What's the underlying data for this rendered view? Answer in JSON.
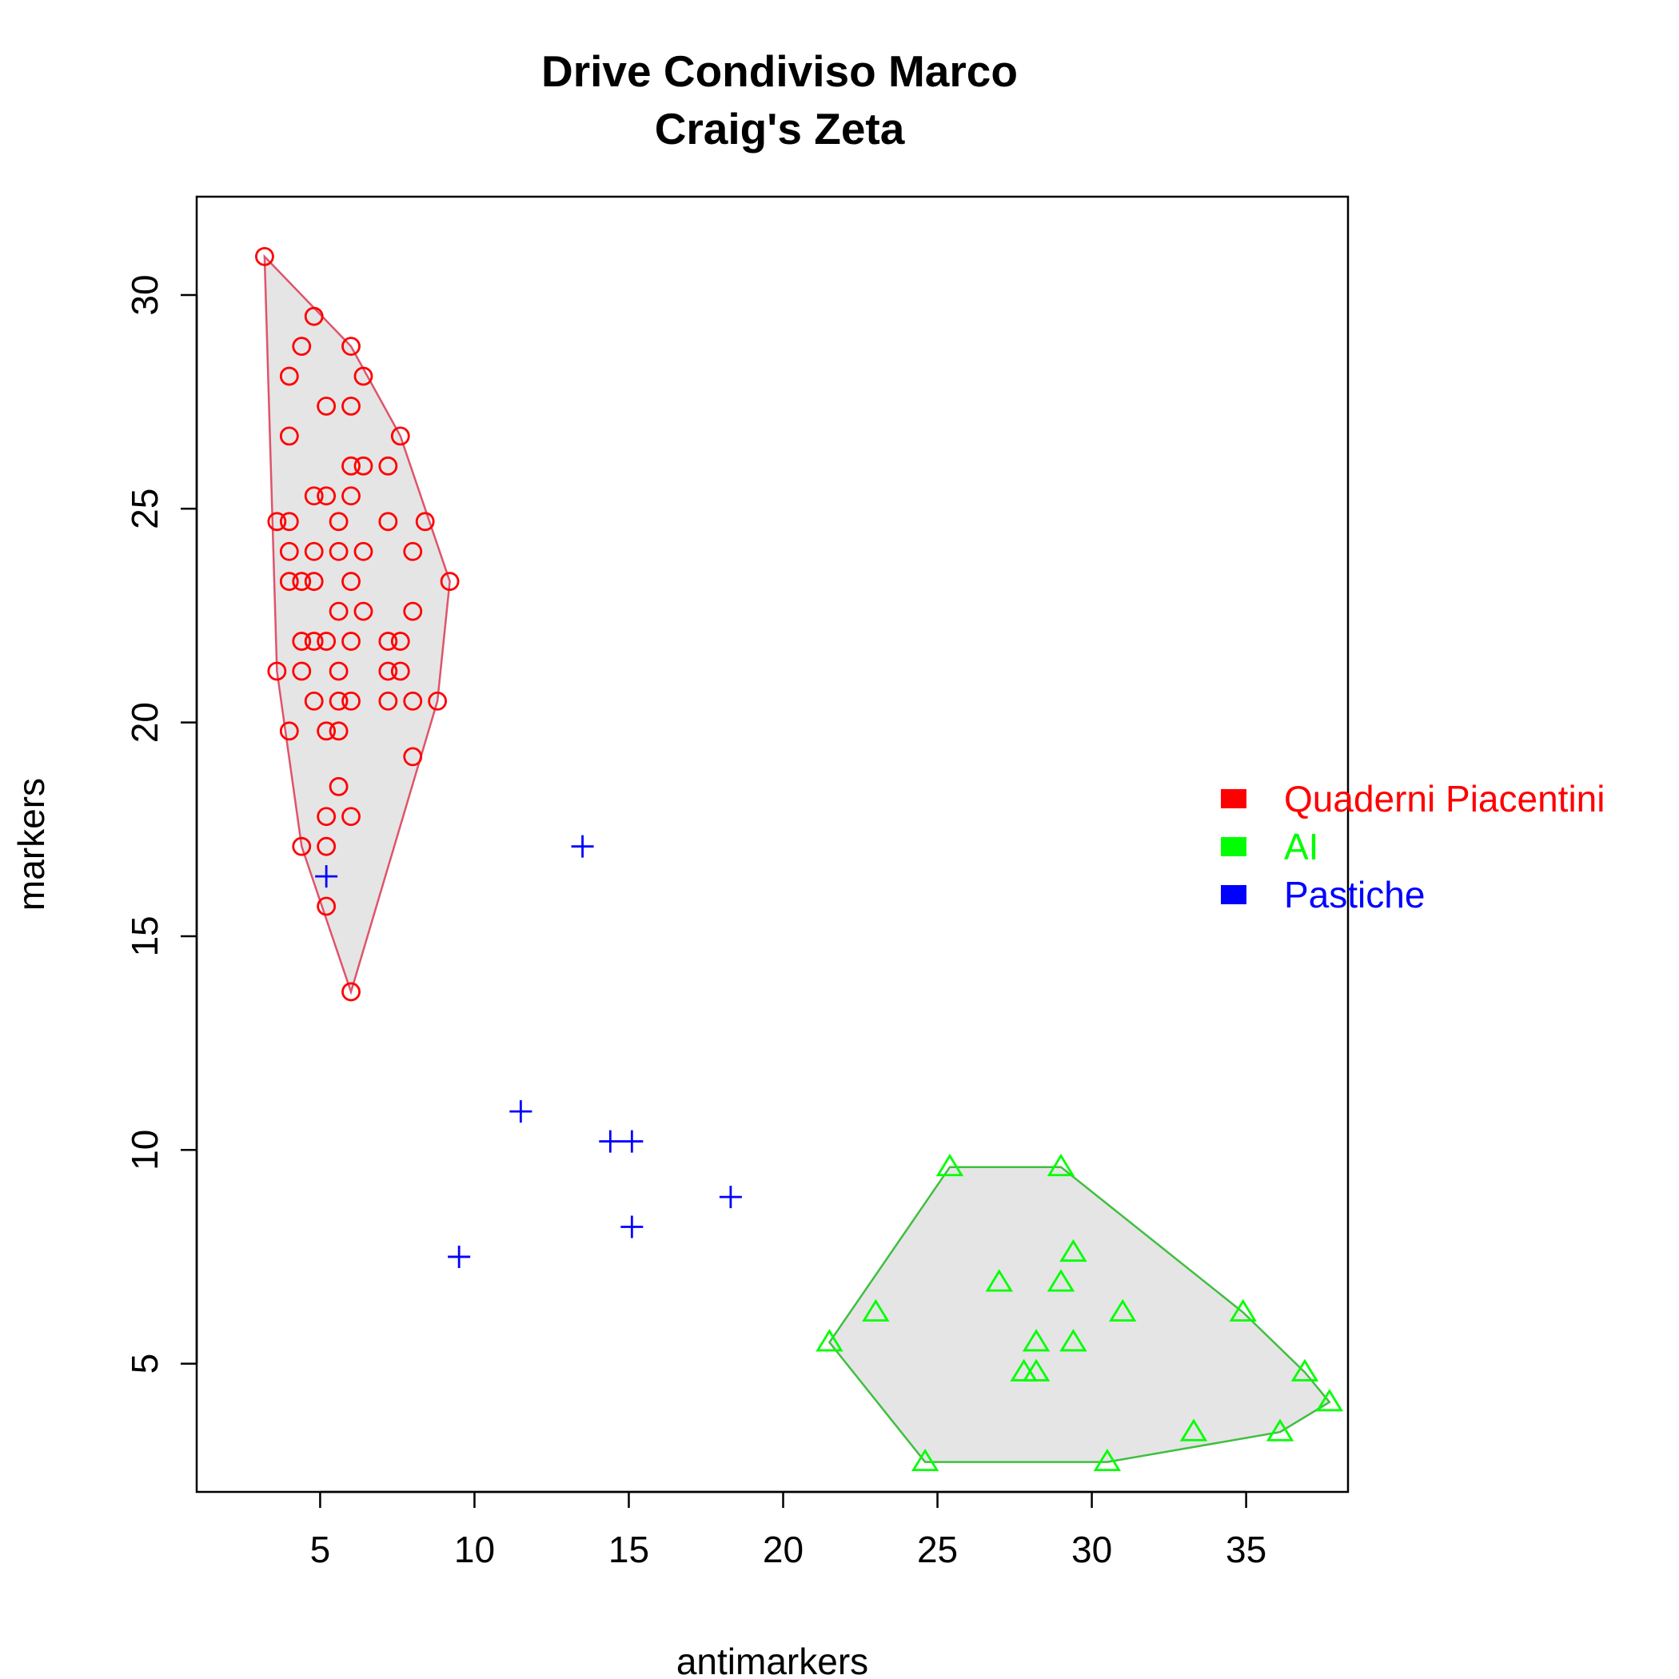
{
  "chart_data": {
    "type": "scatter",
    "title": [
      "Drive Condiviso Marco",
      "Craig's Zeta"
    ],
    "xlabel": "antimarkers",
    "ylabel": "markers",
    "xlim": [
      1,
      38.3
    ],
    "ylim": [
      2,
      32.3
    ],
    "xticks": [
      5,
      10,
      15,
      20,
      25,
      30,
      35
    ],
    "yticks": [
      5,
      10,
      15,
      20,
      25,
      30
    ],
    "grid": false,
    "legend_position": "right",
    "hull_fill": "#e5e5e5",
    "series": [
      {
        "name": "Quaderni Piacentini",
        "color": "#ff0000",
        "hull_color": "#df536b",
        "marker": "circle",
        "hull": true,
        "points": [
          [
            3.2,
            30.9
          ],
          [
            4.8,
            29.5
          ],
          [
            4.4,
            28.8
          ],
          [
            6,
            28.8
          ],
          [
            4,
            28.1
          ],
          [
            6.4,
            28.1
          ],
          [
            5.2,
            27.4
          ],
          [
            6,
            27.4
          ],
          [
            4,
            26.7
          ],
          [
            7.6,
            26.7
          ],
          [
            6,
            26
          ],
          [
            6.4,
            26
          ],
          [
            7.2,
            26
          ],
          [
            4.8,
            25.3
          ],
          [
            5.2,
            25.3
          ],
          [
            6,
            25.3
          ],
          [
            3.6,
            24.7
          ],
          [
            4,
            24.7
          ],
          [
            5.6,
            24.7
          ],
          [
            7.2,
            24.7
          ],
          [
            8.4,
            24.7
          ],
          [
            4,
            24
          ],
          [
            4.8,
            24
          ],
          [
            5.6,
            24
          ],
          [
            6.4,
            24
          ],
          [
            8,
            24
          ],
          [
            4,
            23.3
          ],
          [
            4.4,
            23.3
          ],
          [
            4.8,
            23.3
          ],
          [
            6,
            23.3
          ],
          [
            9.2,
            23.3
          ],
          [
            5.6,
            22.6
          ],
          [
            6.4,
            22.6
          ],
          [
            8,
            22.6
          ],
          [
            4.4,
            21.9
          ],
          [
            4.8,
            21.9
          ],
          [
            5.2,
            21.9
          ],
          [
            6,
            21.9
          ],
          [
            7.2,
            21.9
          ],
          [
            7.6,
            21.9
          ],
          [
            3.6,
            21.2
          ],
          [
            4.4,
            21.2
          ],
          [
            5.6,
            21.2
          ],
          [
            7.2,
            21.2
          ],
          [
            7.6,
            21.2
          ],
          [
            4.8,
            20.5
          ],
          [
            5.6,
            20.5
          ],
          [
            6,
            20.5
          ],
          [
            7.2,
            20.5
          ],
          [
            8,
            20.5
          ],
          [
            8.8,
            20.5
          ],
          [
            4,
            19.8
          ],
          [
            5.2,
            19.8
          ],
          [
            5.6,
            19.8
          ],
          [
            8,
            19.2
          ],
          [
            5.6,
            18.5
          ],
          [
            5.2,
            17.8
          ],
          [
            6,
            17.8
          ],
          [
            4.4,
            17.1
          ],
          [
            5.2,
            17.1
          ],
          [
            5.2,
            15.7
          ],
          [
            6,
            13.7
          ]
        ]
      },
      {
        "name": "AI",
        "color": "#00ff00",
        "hull_color": "#3fbf3f",
        "marker": "triangle",
        "hull": true,
        "points": [
          [
            25.4,
            9.6
          ],
          [
            29,
            9.6
          ],
          [
            29.4,
            7.6
          ],
          [
            27,
            6.9
          ],
          [
            29,
            6.9
          ],
          [
            23,
            6.2
          ],
          [
            31,
            6.2
          ],
          [
            34.9,
            6.2
          ],
          [
            21.5,
            5.5
          ],
          [
            28.2,
            5.5
          ],
          [
            29.4,
            5.5
          ],
          [
            27.8,
            4.8
          ],
          [
            28.2,
            4.8
          ],
          [
            36.9,
            4.8
          ],
          [
            37.7,
            4.1
          ],
          [
            33.3,
            3.4
          ],
          [
            36.1,
            3.4
          ],
          [
            24.6,
            2.7
          ],
          [
            30.5,
            2.7
          ]
        ]
      },
      {
        "name": "Pastiche",
        "color": "#0000ff",
        "marker": "plus",
        "hull": false,
        "points": [
          [
            13.5,
            17.1
          ],
          [
            5.2,
            16.4
          ],
          [
            11.5,
            10.9
          ],
          [
            14.4,
            10.2
          ],
          [
            15.1,
            10.2
          ],
          [
            18.3,
            8.9
          ],
          [
            15.1,
            8.2
          ],
          [
            9.5,
            7.5
          ]
        ]
      }
    ]
  }
}
